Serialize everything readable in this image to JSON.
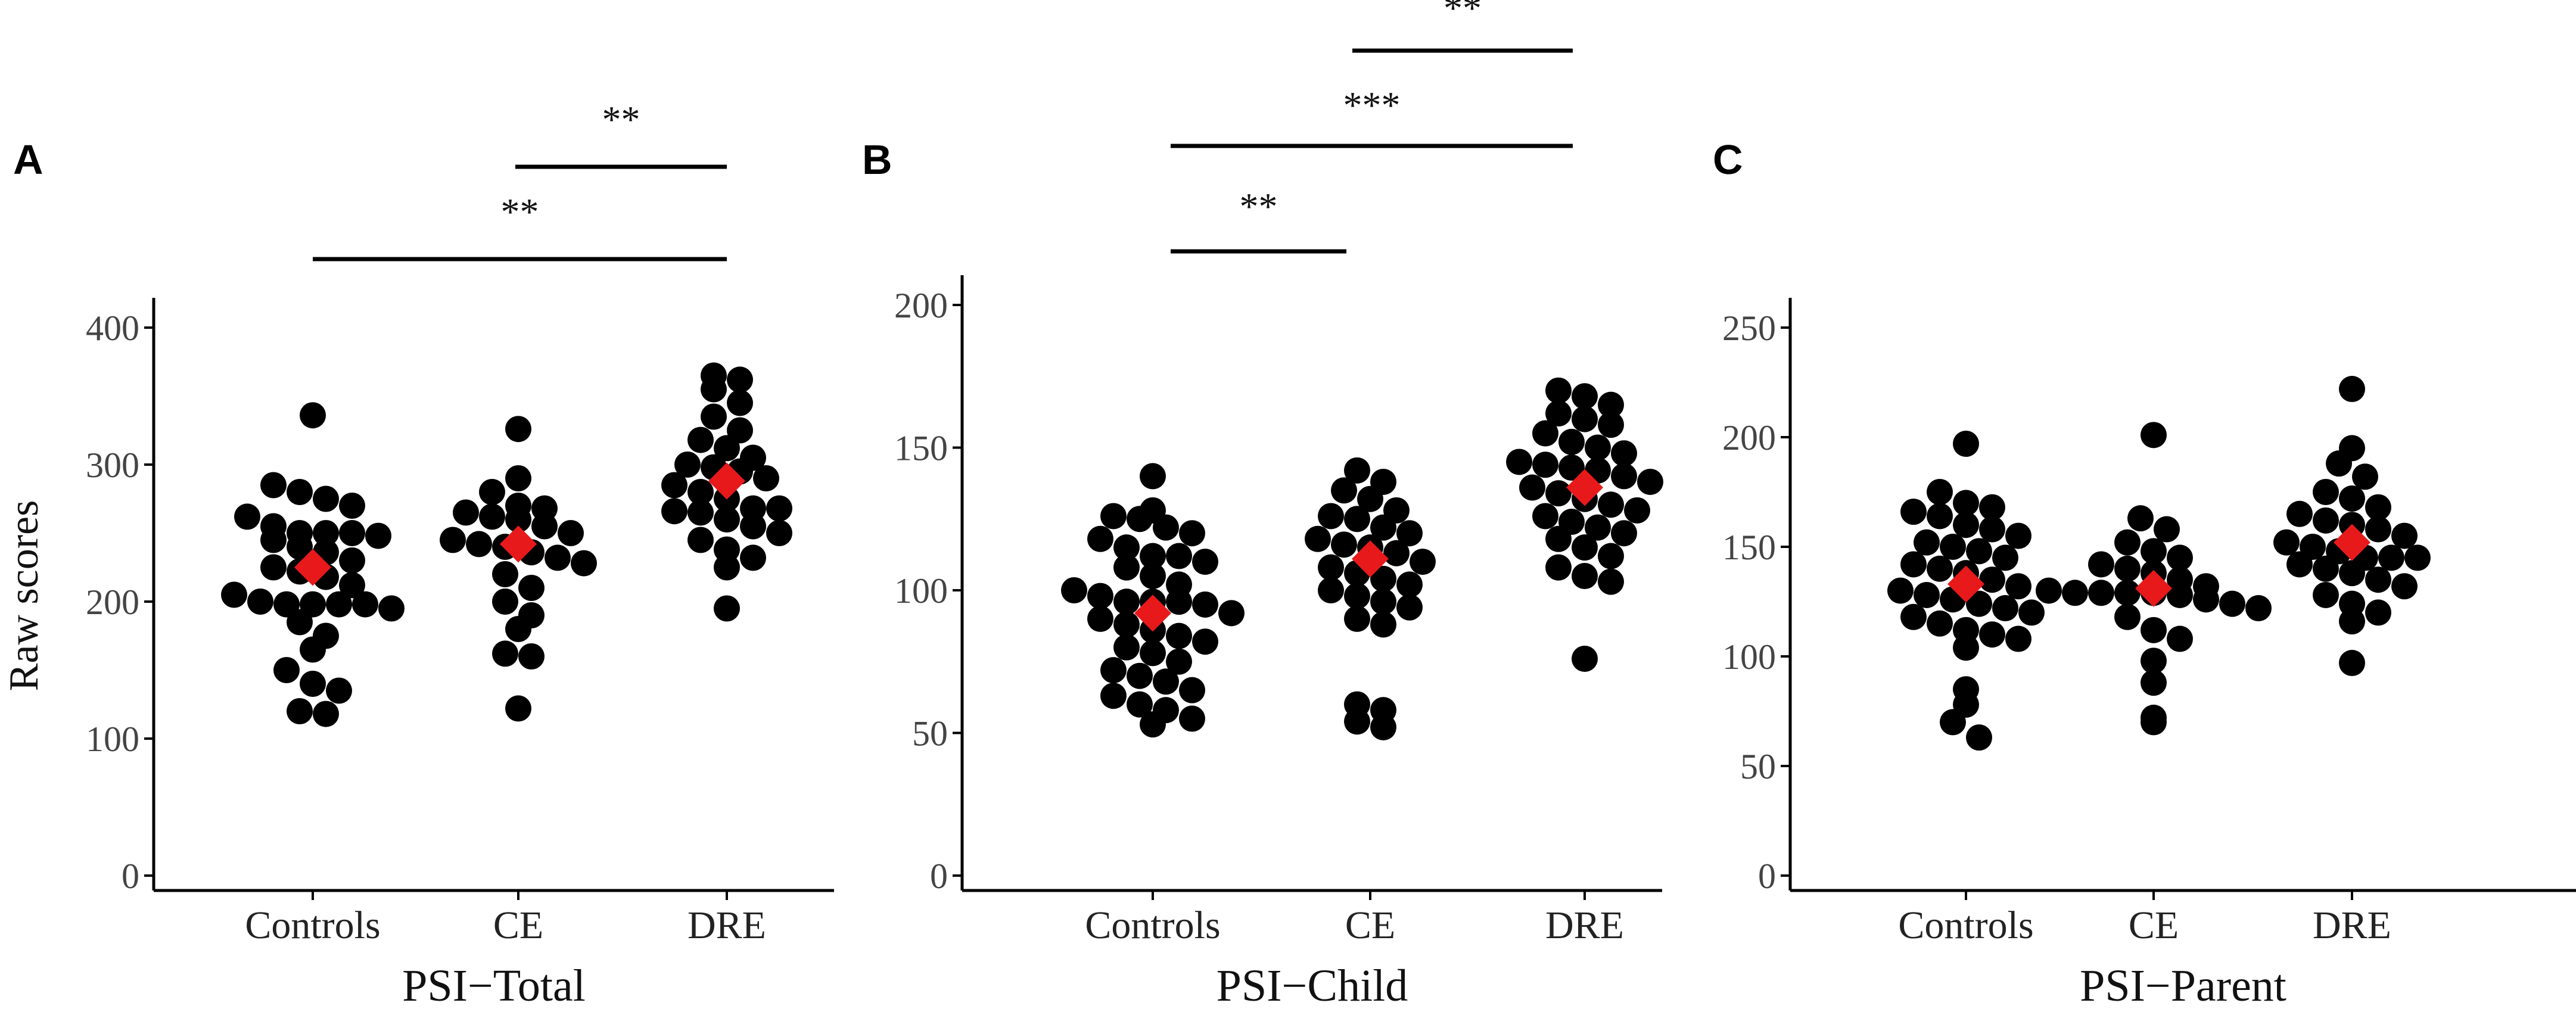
{
  "colors": {
    "points": "#000000",
    "mean_marker": "#e8191b"
  },
  "chart_data": [
    {
      "type": "scatter",
      "panel": "A",
      "title": "",
      "xlabel": "PSI−Total",
      "ylabel": "Raw scores",
      "ylim": [
        0,
        400
      ],
      "yticks": [
        "0",
        "100",
        "200",
        "300",
        "400"
      ],
      "categories": [
        "Controls",
        "CE",
        "DRE"
      ],
      "means": [
        225,
        242,
        288
      ],
      "groups": [
        {
          "name": "Controls",
          "values": [
            336,
            285,
            280,
            275,
            270,
            262,
            255,
            250,
            250,
            250,
            248,
            245,
            240,
            236,
            230,
            225,
            222,
            218,
            212,
            205,
            200,
            198,
            198,
            198,
            198,
            195,
            185,
            175,
            165,
            150,
            140,
            135,
            120,
            118
          ]
        },
        {
          "name": "CE",
          "values": [
            326,
            290,
            280,
            270,
            268,
            265,
            262,
            260,
            255,
            250,
            245,
            242,
            240,
            236,
            232,
            228,
            220,
            210,
            200,
            190,
            180,
            162,
            160,
            122
          ]
        },
        {
          "name": "DRE",
          "values": [
            365,
            362,
            355,
            345,
            335,
            325,
            318,
            312,
            305,
            300,
            298,
            295,
            290,
            285,
            280,
            275,
            268,
            268,
            266,
            265,
            260,
            255,
            250,
            245,
            238,
            232,
            225,
            195
          ]
        }
      ],
      "significance": [
        {
          "from": "CE",
          "to": "DRE",
          "label": "**"
        },
        {
          "from": "Controls",
          "to": "DRE",
          "label": "**"
        }
      ]
    },
    {
      "type": "scatter",
      "panel": "B",
      "title": "",
      "xlabel": "PSI−Child",
      "ylabel": "",
      "ylim": [
        0,
        200
      ],
      "yticks": [
        "0",
        "50",
        "100",
        "150",
        "200"
      ],
      "categories": [
        "Controls",
        "CE",
        "DRE"
      ],
      "means": [
        92,
        111,
        136
      ],
      "groups": [
        {
          "name": "Controls",
          "values": [
            140,
            128,
            126,
            125,
            122,
            120,
            118,
            115,
            112,
            112,
            110,
            108,
            105,
            102,
            100,
            98,
            96,
            96,
            96,
            95,
            92,
            90,
            88,
            86,
            84,
            82,
            80,
            78,
            75,
            72,
            70,
            68,
            65,
            63,
            60,
            58,
            55,
            53
          ]
        },
        {
          "name": "CE",
          "values": [
            142,
            138,
            135,
            132,
            128,
            126,
            125,
            122,
            120,
            118,
            116,
            115,
            113,
            110,
            108,
            106,
            104,
            102,
            100,
            98,
            96,
            94,
            90,
            88,
            60,
            58,
            54,
            52
          ]
        },
        {
          "name": "DRE",
          "values": [
            170,
            168,
            165,
            162,
            160,
            158,
            155,
            152,
            150,
            148,
            145,
            144,
            143,
            142,
            140,
            138,
            136,
            134,
            132,
            130,
            128,
            126,
            124,
            122,
            120,
            118,
            115,
            112,
            108,
            105,
            103,
            76
          ]
        }
      ],
      "significance": [
        {
          "from": "CE",
          "to": "DRE",
          "label": "**"
        },
        {
          "from": "Controls",
          "to": "DRE",
          "label": "***"
        },
        {
          "from": "Controls",
          "to": "CE",
          "label": "**"
        }
      ]
    },
    {
      "type": "scatter",
      "panel": "C",
      "title": "",
      "xlabel": "PSI−Parent",
      "ylabel": "",
      "ylim": [
        0,
        250
      ],
      "yticks": [
        "0",
        "50",
        "100",
        "150",
        "200",
        "250"
      ],
      "categories": [
        "Controls",
        "CE",
        "DRE"
      ],
      "means": [
        133,
        131,
        152
      ],
      "groups": [
        {
          "name": "Controls",
          "values": [
            197,
            175,
            170,
            168,
            166,
            164,
            160,
            158,
            155,
            152,
            150,
            148,
            145,
            142,
            140,
            138,
            135,
            132,
            130,
            128,
            126,
            124,
            122,
            120,
            118,
            115,
            112,
            110,
            108,
            104,
            85,
            78,
            70,
            63
          ]
        },
        {
          "name": "CE",
          "values": [
            201,
            163,
            158,
            152,
            148,
            145,
            142,
            140,
            138,
            135,
            132,
            130,
            129,
            129,
            129,
            129,
            128,
            126,
            124,
            122,
            118,
            112,
            108,
            98,
            88,
            72,
            70
          ]
        },
        {
          "name": "DRE",
          "values": [
            222,
            195,
            188,
            182,
            175,
            172,
            168,
            165,
            162,
            160,
            158,
            155,
            152,
            150,
            148,
            145,
            145,
            145,
            142,
            140,
            138,
            135,
            132,
            128,
            124,
            120,
            116,
            97
          ]
        }
      ],
      "significance": []
    }
  ]
}
